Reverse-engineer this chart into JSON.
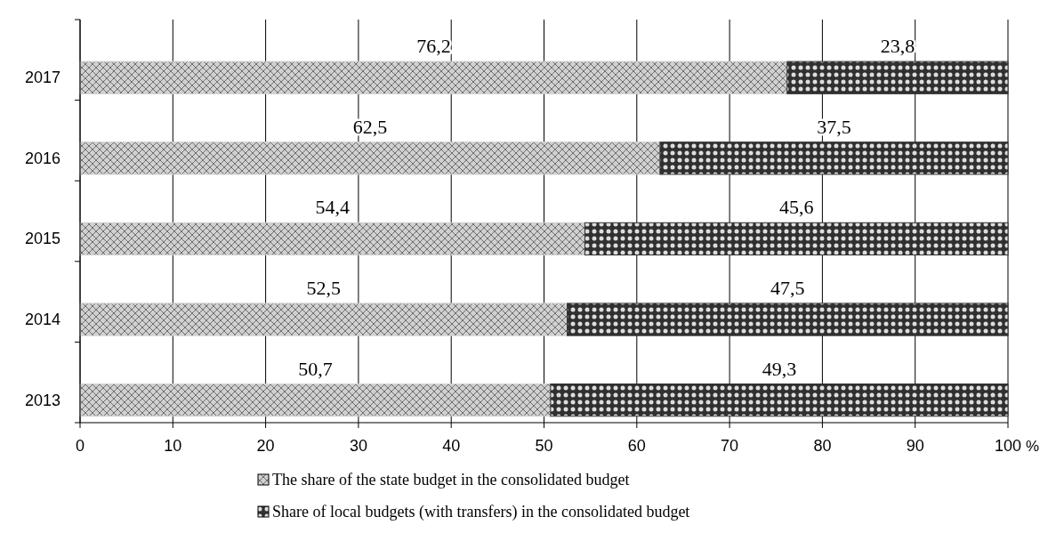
{
  "chart_data": {
    "type": "bar",
    "orientation": "horizontal",
    "stacked": true,
    "xlabel": "%",
    "categories": [
      "2017",
      "2016",
      "2015",
      "2014",
      "2013"
    ],
    "series": [
      {
        "name": "The share of the state budget in the consolidated budget",
        "color": "#d0d0d0",
        "values": [
          76.2,
          62.5,
          54.4,
          52.5,
          50.7
        ],
        "value_labels": [
          "76,2",
          "62,5",
          "54,4",
          "52,5",
          "50,7"
        ]
      },
      {
        "name": "Share of local budgets (with transfers) in the consolidated budget",
        "color": "#303030",
        "values": [
          23.8,
          37.5,
          45.6,
          47.5,
          49.3
        ],
        "value_labels": [
          "23,8",
          "37,5",
          "45,6",
          "47,5",
          "49,3"
        ]
      }
    ],
    "xlim": [
      0,
      100
    ],
    "xticks": [
      0,
      10,
      20,
      30,
      40,
      50,
      60,
      70,
      80,
      90,
      100
    ],
    "grid": "x",
    "legend": "bottom"
  }
}
